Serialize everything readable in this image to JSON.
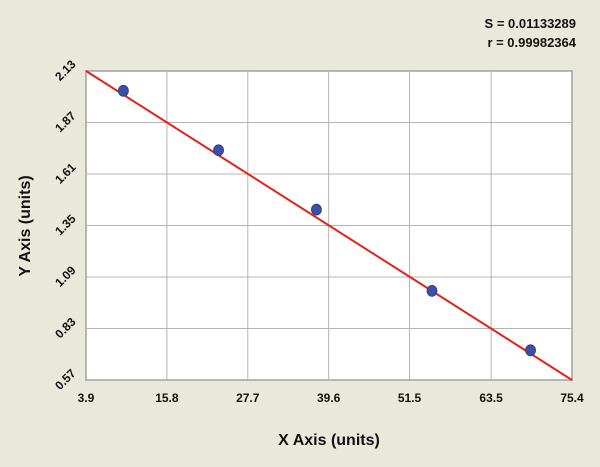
{
  "chart_data": {
    "type": "scatter",
    "title": "",
    "xlabel": "X Axis (units)",
    "ylabel": "Y Axis (units)",
    "xlim": [
      3.9,
      75.4
    ],
    "ylim": [
      0.57,
      2.13
    ],
    "x_ticks": [
      "3.9",
      "15.8",
      "27.7",
      "39.6",
      "51.5",
      "63.5",
      "75.4"
    ],
    "y_ticks": [
      "2.13",
      "1.87",
      "1.61",
      "1.35",
      "1.09",
      "0.83",
      "0.57"
    ],
    "grid": true,
    "stats": {
      "s_label": "S = 0.01133289",
      "r_label": "r = 0.99982364"
    },
    "series": [
      {
        "points": [
          {
            "x": 9.4,
            "y": 2.03
          },
          {
            "x": 23.4,
            "y": 1.73
          },
          {
            "x": 37.8,
            "y": 1.43
          },
          {
            "x": 54.8,
            "y": 1.02
          },
          {
            "x": 69.3,
            "y": 0.72
          }
        ],
        "color": "#3b4fa8"
      }
    ],
    "fit_line": {
      "points": [
        {
          "x": 3.9,
          "y": 2.13
        },
        {
          "x": 75.4,
          "y": 0.57
        }
      ],
      "color": "#e2231a"
    }
  }
}
